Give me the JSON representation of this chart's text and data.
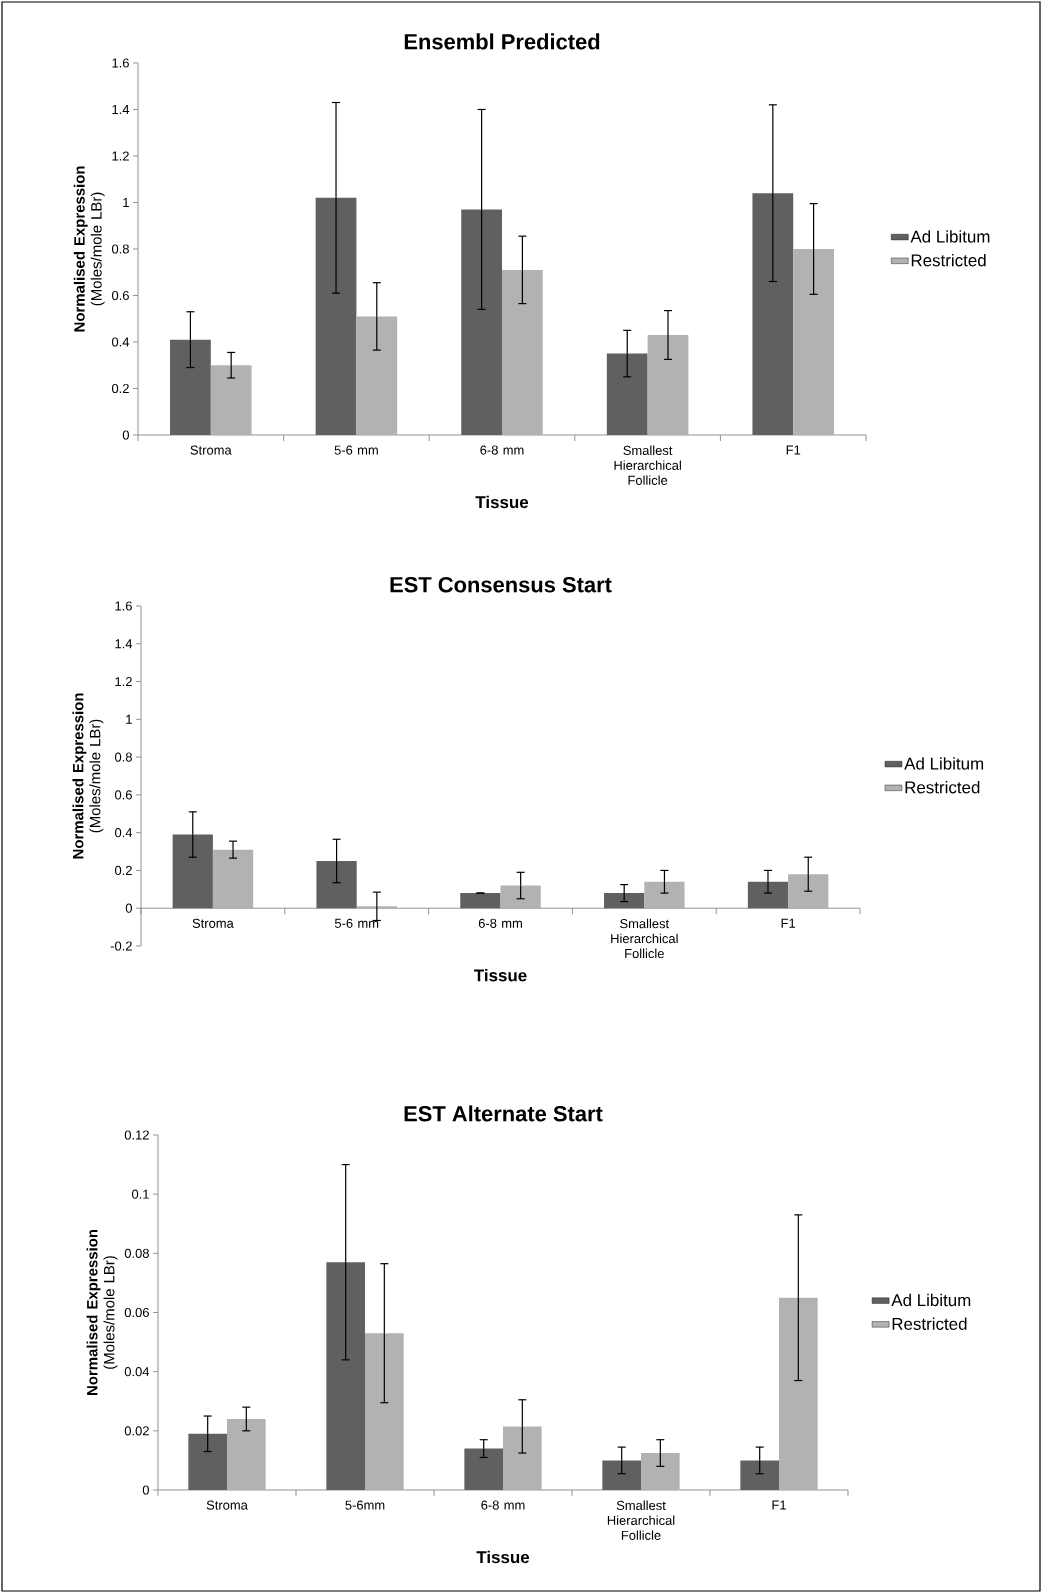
{
  "chart_data": [
    {
      "type": "bar",
      "title": "Ensembl Predicted",
      "xlabel": "Tissue",
      "ylabel": "**Normalised Expression** (Moles/mole LBr)",
      "categories": [
        "Stroma",
        "5-6 mm",
        "6-8 mm",
        "Smallest Hierarchical Follicle",
        "F1"
      ],
      "series": [
        {
          "name": "Ad Libitum",
          "color": "#606060",
          "values": [
            0.41,
            1.02,
            0.97,
            0.35,
            1.04
          ],
          "errors": [
            0.12,
            0.41,
            0.43,
            0.1,
            0.38
          ]
        },
        {
          "name": "Restricted",
          "color": "#b2b2b2",
          "values": [
            0.3,
            0.51,
            0.71,
            0.43,
            0.8
          ],
          "errors": [
            0.055,
            0.145,
            0.145,
            0.105,
            0.195
          ]
        }
      ],
      "ylim": [
        0,
        1.6
      ],
      "yticks": [
        0,
        0.2,
        0.4,
        0.6,
        0.8,
        1,
        1.2,
        1.4,
        1.6
      ],
      "legend": "right"
    },
    {
      "type": "bar",
      "title": "EST Consensus Start",
      "xlabel": "Tissue",
      "ylabel": "**Normalised Expression** (Moles/mole LBr)",
      "categories": [
        "Stroma",
        "5-6 mm",
        "6-8 mm",
        "Smallest Hierarchical Follicle",
        "F1"
      ],
      "series": [
        {
          "name": "Ad Libitum",
          "color": "#606060",
          "values": [
            0.39,
            0.25,
            0.08,
            0.08,
            0.14
          ],
          "errors": [
            0.12,
            0.115,
            0,
            0.045,
            0.06
          ]
        },
        {
          "name": "Restricted",
          "color": "#b2b2b2",
          "values": [
            0.31,
            0.01,
            0.12,
            0.14,
            0.18
          ],
          "errors": [
            0.045,
            0.075,
            0.07,
            0.06,
            0.09
          ]
        }
      ],
      "ylim": [
        -0.2,
        1.6
      ],
      "yticks": [
        -0.2,
        0,
        0.2,
        0.4,
        0.6,
        0.8,
        1,
        1.2,
        1.4,
        1.6
      ],
      "legend": "right"
    },
    {
      "type": "bar",
      "title": "EST Alternate Start",
      "xlabel": "Tissue",
      "ylabel": "**Normalised Expression** (Moles/mole LBr)",
      "categories": [
        "Stroma",
        "5-6mm",
        "6-8 mm",
        "Smallest Hierarchical Follicle",
        "F1"
      ],
      "series": [
        {
          "name": "Ad Libitum",
          "color": "#606060",
          "values": [
            0.019,
            0.077,
            0.014,
            0.01,
            0.01
          ],
          "errors": [
            0.006,
            0.033,
            0.003,
            0.0045,
            0.0045
          ]
        },
        {
          "name": "Restricted",
          "color": "#b2b2b2",
          "values": [
            0.024,
            0.053,
            0.0215,
            0.0125,
            0.065
          ],
          "errors": [
            0.004,
            0.0235,
            0.009,
            0.0045,
            0.028
          ]
        }
      ],
      "ylim": [
        0,
        0.12
      ],
      "yticks": [
        0,
        0.02,
        0.04,
        0.06,
        0.08,
        0.1,
        0.12
      ],
      "legend": "right"
    }
  ]
}
